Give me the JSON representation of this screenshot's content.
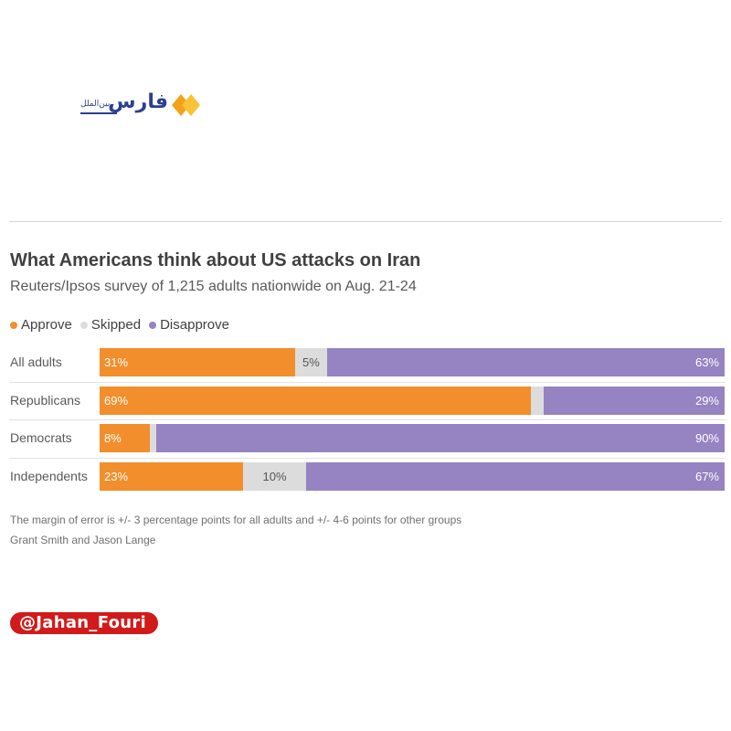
{
  "logo": {
    "text": "فارس",
    "subtext": "بین‌الملل",
    "colors": {
      "text": "#2d3f8f",
      "diamond_orange": "#f3a21b",
      "diamond_yellow": "#f7c338"
    }
  },
  "chart_data": {
    "type": "bar",
    "orientation": "horizontal-stacked-100",
    "title": "What Americans think about US attacks on Iran",
    "subtitle": "Reuters/Ipsos survey of 1,215 adults nationwide on Aug. 21-24",
    "categories": [
      "All adults",
      "Republicans",
      "Democrats",
      "Independents"
    ],
    "series": [
      {
        "name": "Approve",
        "color": "#f28e2b",
        "values": [
          31,
          69,
          8,
          23
        ],
        "labels": [
          "31%",
          "69%",
          "8%",
          "23%"
        ]
      },
      {
        "name": "Skipped",
        "color": "#dcdcdc",
        "values": [
          5,
          2,
          1,
          10
        ],
        "labels": [
          "5%",
          "",
          "",
          "10%"
        ]
      },
      {
        "name": "Disapprove",
        "color": "#9583c2",
        "values": [
          63,
          29,
          90,
          67
        ],
        "labels": [
          "63%",
          "29%",
          "90%",
          "67%"
        ]
      }
    ],
    "xlim": [
      0,
      100
    ],
    "legend": "top-left",
    "grid": false,
    "note": "The margin of error is +/- 3 percentage points for all adults and +/- 4-6 points for other groups",
    "credit": "Grant Smith and Jason Lange"
  },
  "social": {
    "handle": "@Jahan_Fouri",
    "color": "#d21a1a"
  }
}
